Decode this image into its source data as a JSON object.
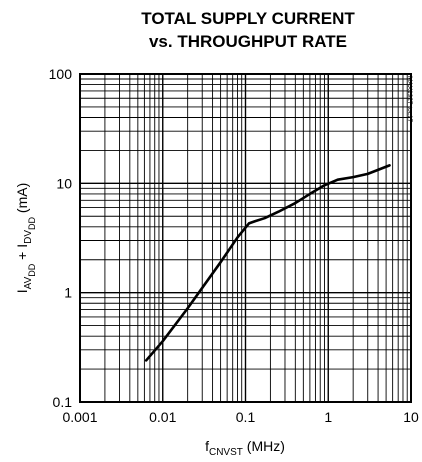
{
  "chart_data": {
    "type": "line",
    "title_line1": "TOTAL SUPPLY CURRENT",
    "title_line2": "vs. THROUGHPUT RATE",
    "xlabel": {
      "main": "f",
      "sub": "CNVST",
      "unit": " (MHz)"
    },
    "ylabel": [
      {
        "text": "I",
        "sub": false
      },
      {
        "text": "AV",
        "sub": true
      },
      {
        "text": "DD",
        "sub": true,
        "subsub": true
      },
      {
        "text": " + I",
        "sub": false
      },
      {
        "text": "DV",
        "sub": true
      },
      {
        "text": "DD",
        "sub": true,
        "subsub": true
      },
      {
        "text": " (mA)",
        "sub": false
      }
    ],
    "x_scale": "log",
    "y_scale": "log",
    "xlim": [
      0.001,
      10
    ],
    "ylim": [
      0.1,
      100
    ],
    "x_ticks": [
      0.001,
      0.01,
      0.1,
      1,
      10
    ],
    "x_tick_labels": [
      "0.001",
      "0.01",
      "0.1",
      "1",
      "10"
    ],
    "y_ticks": [
      0.1,
      1,
      10,
      100
    ],
    "y_tick_labels": [
      "0.1",
      "1",
      "10",
      "100"
    ],
    "grid": true,
    "series": [
      {
        "x": [
          0.0063,
          0.01,
          0.02,
          0.05,
          0.08,
          0.11,
          0.13,
          0.17,
          0.25,
          0.4,
          0.6,
          0.9,
          1.3,
          2.0,
          3.0,
          5.5
        ],
        "y": [
          0.24,
          0.36,
          0.72,
          1.9,
          3.2,
          4.3,
          4.5,
          4.8,
          5.5,
          6.6,
          8.0,
          9.6,
          10.8,
          11.4,
          12.2,
          14.6
        ]
      }
    ],
    "annotation": "MAX1927 toc17"
  }
}
